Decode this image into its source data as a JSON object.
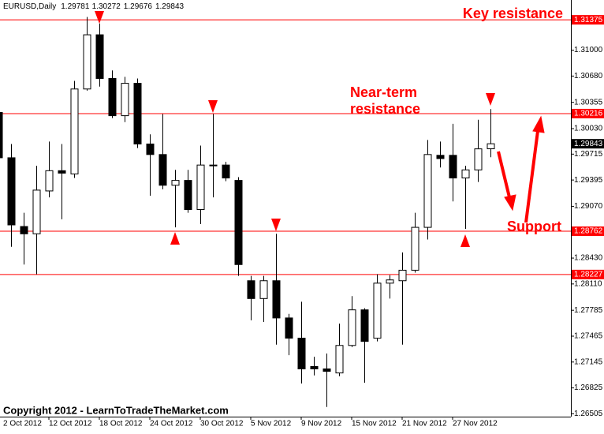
{
  "chart_data": {
    "type": "candlestick",
    "symbol": "EURUSD,Daily",
    "categories": [
      "2 Oct 2012",
      null,
      null,
      null,
      "12 Oct 2012",
      null,
      null,
      null,
      "18 Oct 2012",
      null,
      null,
      null,
      "24 Oct 2012",
      null,
      null,
      null,
      "30 Oct 2012",
      null,
      null,
      null,
      "5 Nov 2012",
      null,
      null,
      null,
      "9 Nov 2012",
      null,
      null,
      null,
      "15 Nov 2012",
      null,
      null,
      null,
      "21 Nov 2012",
      null,
      null,
      null,
      "27 Nov 2012",
      null,
      null,
      null
    ],
    "open": [
      1.3023,
      1.2967,
      1.2882,
      1.2873,
      1.2926,
      1.2951,
      1.2947,
      1.3052,
      1.3119,
      1.3065,
      1.3019,
      1.3059,
      1.2984,
      1.2971,
      1.2933,
      1.2939,
      1.2903,
      1.2957,
      1.2958,
      1.2939,
      1.2815,
      1.2793,
      1.2815,
      1.2769,
      1.2744,
      1.2709,
      1.2706,
      1.2701,
      1.2735,
      1.2779,
      1.2744,
      1.2812,
      1.2815,
      1.2828,
      1.2881,
      1.297,
      1.297,
      1.2942,
      1.2952,
      1.29781
    ],
    "high": [
      1.3023,
      1.2984,
      1.2899,
      1.2957,
      1.2987,
      1.2984,
      1.3062,
      1.3141,
      1.3133,
      1.3075,
      1.3067,
      1.3065,
      1.2996,
      1.3021,
      1.2952,
      1.2952,
      1.2982,
      1.3021,
      1.2962,
      1.2943,
      1.2821,
      1.2821,
      1.2873,
      1.2774,
      1.2789,
      1.2721,
      1.2725,
      1.2762,
      1.2796,
      1.2781,
      1.2823,
      1.2822,
      1.285,
      1.2899,
      1.2989,
      1.2987,
      1.3009,
      1.2957,
      1.3014,
      1.30272
    ],
    "low": [
      1.2967,
      1.2857,
      1.2835,
      1.2823,
      1.2918,
      1.2891,
      1.2942,
      1.305,
      1.3055,
      1.3016,
      1.3011,
      1.2979,
      1.292,
      1.2928,
      1.2881,
      1.2899,
      1.2885,
      1.2918,
      1.2938,
      1.2821,
      1.2766,
      1.2764,
      1.2736,
      1.2723,
      1.2688,
      1.2698,
      1.2659,
      1.2697,
      1.2733,
      1.2689,
      1.274,
      1.2793,
      1.2736,
      1.2825,
      1.2866,
      1.2955,
      1.2913,
      1.2879,
      1.2937,
      1.29676
    ],
    "close": [
      1.2967,
      1.2884,
      1.2873,
      1.2927,
      1.2951,
      1.2948,
      1.3052,
      1.3119,
      1.3065,
      1.3019,
      1.3059,
      1.2984,
      1.2971,
      1.2933,
      1.2939,
      1.2903,
      1.2958,
      1.2958,
      1.2942,
      1.2835,
      1.2793,
      1.2815,
      1.2769,
      1.2744,
      1.2706,
      1.2706,
      1.2703,
      1.2735,
      1.2779,
      1.274,
      1.2812,
      1.2816,
      1.2828,
      1.2881,
      1.2971,
      1.2966,
      1.2942,
      1.2952,
      1.2978,
      1.29843
    ],
    "ylim": [
      1.2647,
      1.3162
    ],
    "yticks": [
      {
        "value": 1.31,
        "label": "1.31000"
      },
      {
        "value": 1.3068,
        "label": "1.30680"
      },
      1.30355,
      {
        "value": 1.3003,
        "label": "1.30030"
      },
      1.29715,
      1.29395,
      {
        "value": 1.2907,
        "label": "1.29070"
      },
      {
        "value": 1.2843,
        "label": "1.28430"
      },
      {
        "value": 1.2811,
        "label": "1.28110"
      },
      1.27785,
      1.27465,
      1.27145,
      1.26825,
      1.26505
    ],
    "levels": [
      1.31375,
      1.30216,
      1.28762,
      1.28227
    ],
    "level_color": "#ff0000",
    "annotations": [
      "Key resistance",
      "Near-term",
      "resistance",
      "Support"
    ],
    "watermark": "Copyright 2012 - LearnToTradeTheMarket.com"
  }
}
